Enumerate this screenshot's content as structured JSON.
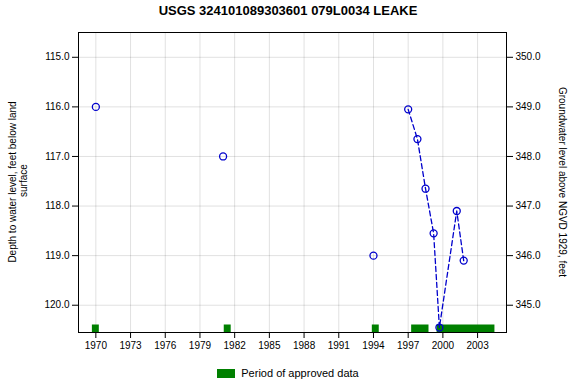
{
  "chart_data": {
    "type": "line",
    "title": "USGS 324101089303601 079L0034  LEAKE",
    "xlim": [
      1968.5,
      2005.5
    ],
    "xticks": [
      1970,
      1973,
      1976,
      1979,
      1982,
      1985,
      1988,
      1991,
      1994,
      1997,
      2000,
      2003
    ],
    "ylabel": "Depth to water level, feet below land\n surface",
    "ylim": [
      120.55,
      114.5
    ],
    "yticks": [
      {
        "value": 115.0,
        "label": "115.0"
      },
      {
        "value": 116.0,
        "label": "116.0"
      },
      {
        "value": 117.0,
        "label": "117.0"
      },
      {
        "value": 118.0,
        "label": "118.0"
      },
      {
        "value": 119.0,
        "label": "119.0"
      },
      {
        "value": 120.0,
        "label": "120.0"
      }
    ],
    "y2label": "Groundwater level above NGVD 1929, feet",
    "y2lim": [
      344.45,
      350.5
    ],
    "y2ticks": [
      {
        "value": 350.0,
        "label": "350.0"
      },
      {
        "value": 349.0,
        "label": "349.0"
      },
      {
        "value": 348.0,
        "label": "348.0"
      },
      {
        "value": 347.0,
        "label": "347.0"
      },
      {
        "value": 346.0,
        "label": "346.0"
      },
      {
        "value": 345.0,
        "label": "345.0"
      }
    ],
    "grid": true,
    "legend": "bottom",
    "series": [
      {
        "type": "scatter",
        "color": "#0000CC",
        "marker": "o",
        "line_style": "none",
        "x": [
          1970,
          1981,
          1994
        ],
        "values": [
          116.0,
          117.0,
          119.0
        ]
      },
      {
        "type": "line",
        "color": "#0000CC",
        "marker": "o",
        "line_style": "dashed",
        "x": [
          1997.0,
          1997.8,
          1998.5,
          1999.2,
          1999.7,
          2001.2,
          2001.8
        ],
        "values": [
          116.05,
          116.65,
          117.65,
          118.55,
          120.45,
          118.1,
          119.1
        ]
      }
    ],
    "periods": {
      "name": "Period of approved data",
      "color": "#008000",
      "ranges": [
        [
          1969.7,
          1970.3
        ],
        [
          1981.1,
          1981.7
        ],
        [
          1993.9,
          1994.5
        ],
        [
          1997.3,
          1998.8
        ],
        [
          1999.5,
          2004.5
        ]
      ]
    }
  }
}
